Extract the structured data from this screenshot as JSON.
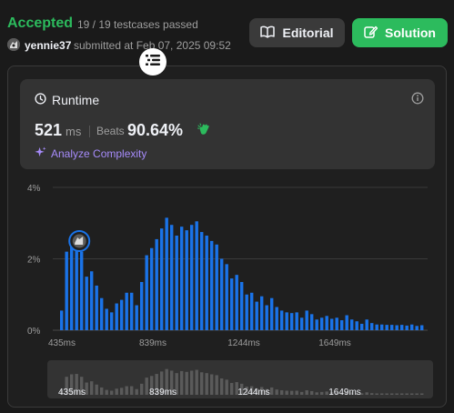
{
  "header": {
    "status": "Accepted",
    "cases": "19 / 19 testcases passed",
    "username": "yennie37",
    "submitted": "submitted at Feb 07, 2025 09:52"
  },
  "buttons": {
    "editorial": "Editorial",
    "solution": "Solution"
  },
  "runtime": {
    "title": "Runtime",
    "value": "521",
    "unit": "ms",
    "beats_label": "Beats",
    "beats_value": "90.64%",
    "analyze_label": "Analyze Complexity"
  },
  "colors": {
    "accepted": "#2cbb5d",
    "bar": "#1a73e8",
    "analyze": "#a68bfa"
  },
  "chart_data": {
    "type": "bar",
    "ylabel_ticks": [
      "4%",
      "2%",
      "0%"
    ],
    "ylim": [
      0,
      4
    ],
    "x_tick_labels": [
      "435ms",
      "839ms",
      "1244ms",
      "1649ms"
    ],
    "highlighted_index": 3,
    "values": [
      0.55,
      2.2,
      2.5,
      2.55,
      2.2,
      1.5,
      1.65,
      1.25,
      0.9,
      0.6,
      0.5,
      0.75,
      0.85,
      1.05,
      1.05,
      0.7,
      1.35,
      2.1,
      2.3,
      2.55,
      2.85,
      3.15,
      2.95,
      2.65,
      2.9,
      2.8,
      2.95,
      3.05,
      2.75,
      2.65,
      2.5,
      2.4,
      2.0,
      1.85,
      1.45,
      1.55,
      1.35,
      1.0,
      1.05,
      0.8,
      0.95,
      0.7,
      0.9,
      0.65,
      0.55,
      0.5,
      0.48,
      0.5,
      0.35,
      0.55,
      0.45,
      0.3,
      0.35,
      0.4,
      0.32,
      0.35,
      0.28,
      0.42,
      0.3,
      0.25,
      0.18,
      0.3,
      0.2,
      0.16,
      0.16,
      0.15,
      0.15,
      0.14,
      0.15,
      0.13,
      0.16,
      0.12,
      0.14
    ]
  }
}
